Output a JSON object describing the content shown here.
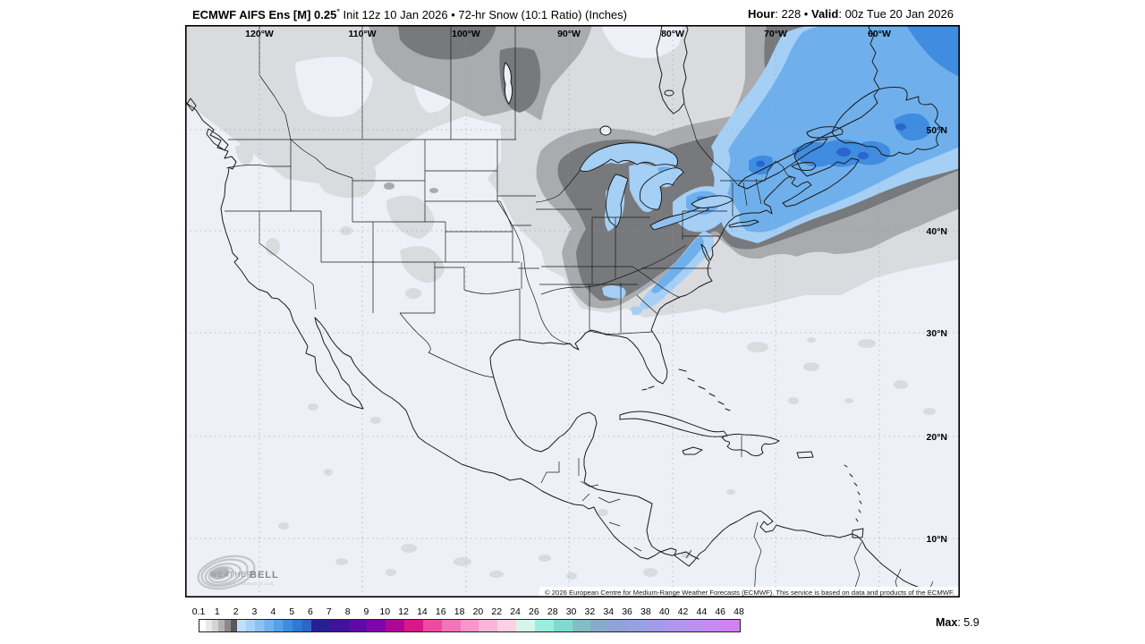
{
  "header": {
    "title_bold": "ECMWF AIFS Ens [M] 0.25",
    "title_degree": "°",
    "title_rest": " Init 12z 10 Jan 2026 • 72-hr Snow (10:1 Ratio) (Inches)",
    "hour_label": "Hour",
    "hour_sep": ": 228 • ",
    "valid_label": "Valid",
    "valid_value": ": 00z Tue 20 Jan 2026"
  },
  "map": {
    "lon_labels": [
      "120°W",
      "110°W",
      "100°W",
      "90°W",
      "80°W",
      "70°W",
      "60°W"
    ],
    "lat_labels": [
      "50°N",
      "40°N",
      "30°N",
      "20°N",
      "10°N"
    ],
    "copyright": "© 2026 European Centre for Medium-Range Weather Forecasts (ECMWF). This service is based on data and products of the ECMWF.",
    "watermark_weather": "WEATHER",
    "watermark_bell": "BELL",
    "watermark_sub": "Analytics LLC"
  },
  "palette": {
    "background": "#edf1f7",
    "gray_light": "#d9dbde",
    "gray_medium": "#a9abae",
    "gray_dark": "#77797c",
    "blue_2to3": "#a5cff5",
    "blue_3to4": "#6fb0ec",
    "blue_4to5": "#3f8ce0",
    "blue_5to6": "#2a66cd",
    "coast_line": "#1a1a1a"
  },
  "colorbar": {
    "labels": [
      "0.1",
      "1",
      "2",
      "3",
      "4",
      "5",
      "6",
      "7",
      "8",
      "9",
      "10",
      "12",
      "14",
      "16",
      "18",
      "20",
      "22",
      "24",
      "26",
      "28",
      "30",
      "32",
      "34",
      "36",
      "38",
      "40",
      "42",
      "44",
      "46",
      "48"
    ],
    "cells": [
      [
        "#ffffff",
        "#e9e9ea",
        "#d4d4d6"
      ],
      [
        "#b3b3b6",
        "#8a8a8e",
        "#58585c"
      ],
      [
        "#bfe0fb",
        "#a5d2f7"
      ],
      [
        "#8bc2f2",
        "#71b1ec"
      ],
      [
        "#55a0e6",
        "#3c8de0"
      ],
      [
        "#2e79d6",
        "#2a67cd"
      ],
      [
        "#281e95"
      ],
      [
        "#41119f"
      ],
      [
        "#5e09a8"
      ],
      [
        "#8004ad"
      ],
      [
        "#b00697"
      ],
      [
        "#d81788"
      ],
      [
        "#ee4aa4"
      ],
      [
        "#f573b9"
      ],
      [
        "#f995cb"
      ],
      [
        "#fbb5da"
      ],
      [
        "#fcd0e7"
      ],
      [
        "#d8f5ec"
      ],
      [
        "#9beede"
      ],
      [
        "#7fdbd2"
      ],
      [
        "#84bdc6"
      ],
      [
        "#88abcd"
      ],
      [
        "#8fa3d8"
      ],
      [
        "#99a0e2"
      ],
      [
        "#a49ce9"
      ],
      [
        "#b096ee"
      ],
      [
        "#bc90f1"
      ],
      [
        "#c789f2"
      ],
      [
        "#d381f2"
      ]
    ]
  },
  "footer": {
    "max_label": "Max",
    "max_value": ": 5.9"
  }
}
